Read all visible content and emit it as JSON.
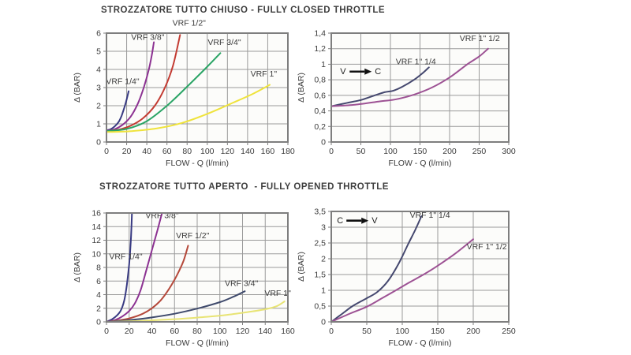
{
  "sections": [
    {
      "title": "STROZZATORE TUTTO CHIUSO - FULLY CLOSED THROTTLE"
    },
    {
      "title": "STROZZATORE TUTTO APERTO  - FULLY OPENED THROTTLE"
    }
  ],
  "theme": {
    "plot_bg": "#fcfcfa",
    "grid": "#9a9a9a",
    "border": "#7e7e7e",
    "text": "#3b3b3b",
    "arrow": "#111111"
  },
  "chart_data": [
    {
      "type": "line",
      "title_section": "STROZZATORE TUTTO CHIUSO - FULLY CLOSED THROTTLE",
      "xlabel": "FLOW - Q (l/min)",
      "ylabel": "Δ (BAR)",
      "xlim": [
        0,
        180
      ],
      "ylim": [
        0,
        6
      ],
      "grid": true,
      "xticks": [
        0,
        20,
        40,
        60,
        80,
        100,
        120,
        140,
        160,
        180
      ],
      "xtick_labels": [
        "0",
        "20",
        "40",
        "60",
        "80",
        "100",
        "120",
        "140",
        "160",
        "180"
      ],
      "yticks": [
        0,
        1,
        2,
        3,
        4,
        5,
        6
      ],
      "ytick_labels": [
        "0",
        "1",
        "2",
        "3",
        "4",
        "5",
        "6"
      ],
      "series": [
        {
          "name": "VRF 1/4\"",
          "color": "#383a82",
          "label_pos": [
            16,
            3.2
          ],
          "label_anchor": "middle",
          "points": [
            [
              0,
              0.65
            ],
            [
              4,
              0.7
            ],
            [
              8,
              0.85
            ],
            [
              12,
              1.1
            ],
            [
              15,
              1.45
            ],
            [
              18,
              1.95
            ],
            [
              20,
              2.35
            ],
            [
              22,
              2.8
            ]
          ]
        },
        {
          "name": "VRF 3/8\"",
          "color": "#8c3292",
          "label_pos": [
            41,
            5.62
          ],
          "label_anchor": "middle",
          "points": [
            [
              0,
              0.62
            ],
            [
              8,
              0.7
            ],
            [
              16,
              0.95
            ],
            [
              24,
              1.4
            ],
            [
              31,
              2.1
            ],
            [
              37,
              3.0
            ],
            [
              42,
              4.0
            ],
            [
              45,
              4.8
            ],
            [
              47,
              5.5
            ]
          ]
        },
        {
          "name": "VRF 1/2\"",
          "color": "#c33b32",
          "label_pos": [
            82,
            6.42
          ],
          "label_anchor": "middle",
          "points": [
            [
              0,
              0.6
            ],
            [
              12,
              0.68
            ],
            [
              24,
              0.9
            ],
            [
              36,
              1.3
            ],
            [
              48,
              2.0
            ],
            [
              58,
              3.0
            ],
            [
              66,
              4.2
            ],
            [
              73,
              5.9
            ]
          ]
        },
        {
          "name": "VRF 3/4\"",
          "color": "#2aa465",
          "label_pos": [
            117,
            5.35
          ],
          "label_anchor": "middle",
          "points": [
            [
              0,
              0.6
            ],
            [
              20,
              0.72
            ],
            [
              40,
              1.15
            ],
            [
              60,
              2.0
            ],
            [
              80,
              3.05
            ],
            [
              100,
              4.15
            ],
            [
              113,
              4.9
            ]
          ]
        },
        {
          "name": "VRF 1\"",
          "color": "#efe33c",
          "label_pos": [
            156,
            3.6
          ],
          "label_anchor": "middle",
          "points": [
            [
              0,
              0.55
            ],
            [
              25,
              0.6
            ],
            [
              50,
              0.75
            ],
            [
              75,
              1.05
            ],
            [
              100,
              1.55
            ],
            [
              125,
              2.15
            ],
            [
              145,
              2.65
            ],
            [
              162,
              3.15
            ]
          ]
        }
      ],
      "annotations": []
    },
    {
      "type": "line",
      "title_section": "STROZZATORE TUTTO CHIUSO - FULLY CLOSED THROTTLE",
      "xlabel": "FLOW - Q (l/min)",
      "ylabel": "Δ (BAR)",
      "xlim": [
        0,
        300
      ],
      "ylim": [
        0,
        1.4
      ],
      "grid": true,
      "xticks": [
        0,
        50,
        100,
        150,
        200,
        250,
        300
      ],
      "xtick_labels": [
        "0",
        "50",
        "100",
        "150",
        "200",
        "250",
        "300"
      ],
      "yticks": [
        0,
        0.2,
        0.4,
        0.6,
        0.8,
        1,
        1.2,
        1.4
      ],
      "ytick_labels": [
        "0",
        "0,2",
        "0,4",
        "0,6",
        "0,8",
        "1",
        "1,2",
        "1,4"
      ],
      "series": [
        {
          "name": "VRF 1\" 1/4",
          "color": "#45486f",
          "label_pos": [
            143,
            1.0
          ],
          "label_anchor": "middle",
          "points": [
            [
              0,
              0.46
            ],
            [
              25,
              0.5
            ],
            [
              50,
              0.54
            ],
            [
              70,
              0.59
            ],
            [
              90,
              0.64
            ],
            [
              105,
              0.66
            ],
            [
              120,
              0.71
            ],
            [
              140,
              0.8
            ],
            [
              155,
              0.89
            ],
            [
              165,
              0.96
            ]
          ]
        },
        {
          "name": "VRF 1\" 1/2",
          "color": "#9d5294",
          "label_pos": [
            251,
            1.3
          ],
          "label_anchor": "middle",
          "points": [
            [
              0,
              0.46
            ],
            [
              40,
              0.48
            ],
            [
              80,
              0.52
            ],
            [
              110,
              0.55
            ],
            [
              140,
              0.61
            ],
            [
              170,
              0.7
            ],
            [
              200,
              0.83
            ],
            [
              230,
              1.0
            ],
            [
              250,
              1.1
            ],
            [
              265,
              1.2
            ]
          ]
        }
      ],
      "annotations": [
        {
          "left": "V",
          "right": "C",
          "x": 15,
          "y": 0.87
        }
      ]
    },
    {
      "type": "line",
      "title_section": "STROZZATORE TUTTO APERTO  - FULLY OPENED THROTTLE",
      "xlabel": "FLOW - Q (l/min)",
      "ylabel": "Δ (BAR)",
      "xlim": [
        0,
        160
      ],
      "ylim": [
        0,
        16
      ],
      "grid": true,
      "xticks": [
        0,
        20,
        40,
        60,
        80,
        100,
        120,
        140,
        160
      ],
      "xtick_labels": [
        "0",
        "20",
        "40",
        "60",
        "80",
        "100",
        "120",
        "140",
        "160"
      ],
      "yticks": [
        0,
        2,
        4,
        6,
        8,
        10,
        12,
        14,
        16
      ],
      "ytick_labels": [
        "0",
        "2",
        "4",
        "6",
        "8",
        "10",
        "12",
        "14",
        "16"
      ],
      "series": [
        {
          "name": "VRF 1/4\"",
          "color": "#383a82",
          "label_pos": [
            17,
            9.2
          ],
          "label_anchor": "middle",
          "points": [
            [
              0,
              0
            ],
            [
              5,
              0.4
            ],
            [
              9,
              0.9
            ],
            [
              12,
              1.5
            ],
            [
              14,
              2.2
            ],
            [
              16,
              3.4
            ],
            [
              18,
              5.5
            ],
            [
              20,
              8.5
            ],
            [
              21.5,
              12
            ],
            [
              22.5,
              16
            ]
          ]
        },
        {
          "name": "VRF 3/8\"",
          "color": "#8c3292",
          "label_pos": [
            49,
            15.25
          ],
          "label_anchor": "middle",
          "points": [
            [
              0,
              0
            ],
            [
              8,
              0.3
            ],
            [
              14,
              0.8
            ],
            [
              20,
              1.6
            ],
            [
              25,
              2.7
            ],
            [
              30,
              4.6
            ],
            [
              35,
              7.5
            ],
            [
              40,
              10.5
            ],
            [
              45,
              13.5
            ],
            [
              49,
              16
            ]
          ]
        },
        {
          "name": "VRF 1/2\"",
          "color": "#b5493b",
          "label_pos": [
            76,
            12.3
          ],
          "label_anchor": "middle",
          "points": [
            [
              0,
              0
            ],
            [
              12,
              0.25
            ],
            [
              22,
              0.6
            ],
            [
              32,
              1.2
            ],
            [
              40,
              2.0
            ],
            [
              48,
              3.2
            ],
            [
              55,
              4.8
            ],
            [
              62,
              6.8
            ],
            [
              68,
              9.0
            ],
            [
              72,
              11.2
            ]
          ]
        },
        {
          "name": "VRF 3/4\"",
          "color": "#3f4a6c",
          "label_pos": [
            119,
            5.25
          ],
          "label_anchor": "middle",
          "points": [
            [
              0,
              0
            ],
            [
              20,
              0.25
            ],
            [
              40,
              0.65
            ],
            [
              60,
              1.2
            ],
            [
              80,
              1.95
            ],
            [
              100,
              2.9
            ],
            [
              112,
              3.7
            ],
            [
              122,
              4.5
            ]
          ]
        },
        {
          "name": "VRF 1\"",
          "color": "#e8e474",
          "label_pos": [
            151,
            3.85
          ],
          "label_anchor": "middle",
          "points": [
            [
              0,
              0
            ],
            [
              30,
              0.15
            ],
            [
              60,
              0.4
            ],
            [
              85,
              0.7
            ],
            [
              105,
              1.0
            ],
            [
              125,
              1.45
            ],
            [
              140,
              1.85
            ],
            [
              150,
              2.3
            ],
            [
              157,
              3.0
            ]
          ]
        }
      ],
      "annotations": []
    },
    {
      "type": "line",
      "title_section": "STROZZATORE TUTTO APERTO  - FULLY OPENED THROTTLE",
      "xlabel": "FLOW - Q (l/min)",
      "ylabel": "Δ (BAR)",
      "xlim": [
        0,
        250
      ],
      "ylim": [
        0,
        3.5
      ],
      "grid": true,
      "xticks": [
        0,
        50,
        100,
        150,
        200,
        250
      ],
      "xtick_labels": [
        "0",
        "50",
        "100",
        "150",
        "200",
        "250"
      ],
      "yticks": [
        0,
        0.5,
        1,
        1.5,
        2,
        2.5,
        3,
        3.5
      ],
      "ytick_labels": [
        "0",
        "0,5",
        "1",
        "1,5",
        "2",
        "2,5",
        "3",
        "3,5"
      ],
      "series": [
        {
          "name": "VRF 1\" 1/4",
          "color": "#45486f",
          "label_pos": [
            139,
            3.3
          ],
          "label_anchor": "middle",
          "points": [
            [
              0,
              0
            ],
            [
              15,
              0.25
            ],
            [
              30,
              0.5
            ],
            [
              50,
              0.75
            ],
            [
              65,
              0.95
            ],
            [
              80,
              1.3
            ],
            [
              95,
              1.85
            ],
            [
              108,
              2.45
            ],
            [
              118,
              2.9
            ],
            [
              127,
              3.35
            ]
          ]
        },
        {
          "name": "VRF 1\" 1/2",
          "color": "#9d5294",
          "label_pos": [
            219,
            2.3
          ],
          "label_anchor": "middle",
          "points": [
            [
              0,
              0
            ],
            [
              25,
              0.25
            ],
            [
              50,
              0.48
            ],
            [
              70,
              0.73
            ],
            [
              91,
              1.0
            ],
            [
              110,
              1.25
            ],
            [
              130,
              1.5
            ],
            [
              150,
              1.78
            ],
            [
              175,
              2.17
            ],
            [
              200,
              2.62
            ]
          ]
        }
      ],
      "annotations": [
        {
          "left": "C",
          "right": "V",
          "x": 8,
          "y": 3.12
        }
      ]
    }
  ]
}
